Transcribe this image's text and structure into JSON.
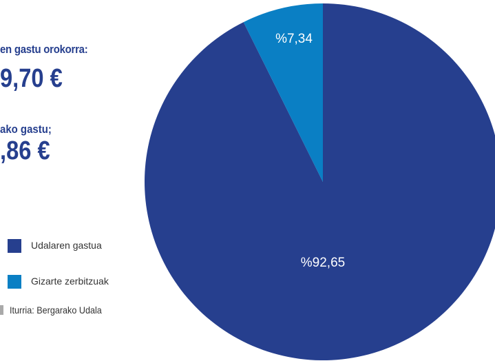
{
  "summary": {
    "general_label": "en gastu orokorra:",
    "general_value": "9,70 €",
    "specific_label": "ako gastu;",
    "specific_value": ",86 €"
  },
  "legend": [
    {
      "label": "Udalaren gastua",
      "color": "#263f8e"
    },
    {
      "label": "Gizarte zerbitzuak",
      "color": "#0a7fc4"
    }
  ],
  "source": "Iturria: Bergarako Udala",
  "chart_data": {
    "type": "pie",
    "slices": [
      {
        "name": "Udalaren gastua",
        "value": 92.65,
        "label": "%92,65",
        "color": "#263f8e"
      },
      {
        "name": "Gizarte zerbitzuak",
        "value": 7.34,
        "label": "%7,34",
        "color": "#0a7fc4"
      }
    ],
    "legend_position": "left"
  }
}
